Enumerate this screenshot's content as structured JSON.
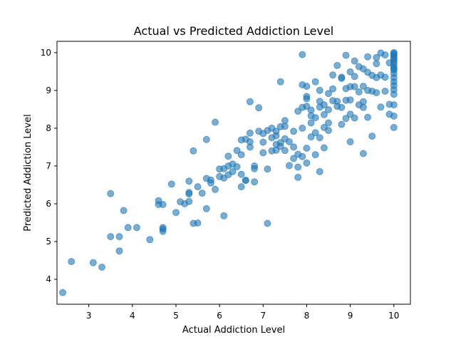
{
  "chart_data": {
    "type": "scatter",
    "title": "Actual vs Predicted Addiction Level",
    "xlabel": "Actual Addiction Level",
    "ylabel": "Predicted Addiction Level",
    "xlim": [
      2.27,
      10.38
    ],
    "ylim": [
      3.34,
      10.3
    ],
    "xticks": [
      "3",
      "4",
      "5",
      "6",
      "7",
      "8",
      "9",
      "10"
    ],
    "yticks": [
      "4",
      "5",
      "6",
      "7",
      "8",
      "9",
      "10"
    ],
    "grid": false,
    "legend": "none",
    "marker_color": "#1f77b4",
    "marker_alpha": 0.6,
    "x": [
      2.4,
      2.6,
      3.1,
      3.3,
      3.5,
      3.5,
      3.7,
      3.7,
      3.8,
      3.9,
      4.1,
      4.4,
      4.6,
      4.6,
      4.7,
      4.7,
      4.7,
      4.7,
      4.9,
      5.0,
      5.1,
      5.2,
      5.3,
      5.3,
      5.3,
      5.4,
      5.5,
      5.6,
      5.7,
      5.7,
      5.7,
      5.8,
      5.8,
      5.9,
      5.9,
      6.0,
      6.0,
      6.1,
      6.1,
      6.2,
      6.2,
      6.2,
      6.3,
      6.3,
      6.4,
      6.4,
      6.5,
      6.5,
      6.5,
      6.5,
      6.6,
      6.6,
      6.7,
      6.7,
      6.7,
      6.7,
      6.8,
      6.8,
      6.8,
      6.9,
      6.9,
      7.0,
      7.0,
      7.0,
      7.1,
      7.1,
      7.2,
      7.2,
      7.2,
      7.3,
      7.3,
      7.3,
      7.3,
      7.4,
      7.4,
      7.4,
      7.4,
      7.5,
      7.5,
      7.5,
      7.5,
      7.6,
      7.6,
      7.7,
      7.7,
      7.7,
      7.8,
      7.8,
      7.8,
      7.9,
      7.9,
      7.9,
      7.9,
      8.0,
      8.0,
      8.0,
      8.0,
      8.0,
      8.0,
      8.1,
      8.1,
      8.1,
      8.1,
      8.2,
      8.2,
      8.2,
      8.2,
      8.3,
      8.3,
      8.3,
      8.3,
      8.4,
      8.4,
      8.4,
      8.4,
      8.5,
      8.5,
      8.5,
      8.5,
      8.6,
      8.6,
      8.6,
      8.7,
      8.7,
      8.7,
      8.8,
      8.8,
      8.8,
      8.8,
      8.9,
      8.9,
      8.9,
      8.9,
      9.0,
      9.0,
      9.0,
      9.0,
      9.0,
      9.1,
      9.1,
      9.1,
      9.1,
      9.2,
      9.2,
      9.2,
      9.3,
      9.3,
      9.3,
      9.3,
      9.4,
      9.4,
      9.4,
      9.4,
      9.5,
      9.5,
      9.5,
      9.6,
      9.6,
      9.6,
      9.6,
      9.7,
      9.7,
      9.7,
      9.8,
      9.8,
      9.8,
      9.9,
      9.9,
      9.9,
      10.0,
      10.0,
      10.0,
      10.0,
      10.0,
      10.0,
      10.0,
      10.0,
      10.0,
      10.0,
      10.0,
      10.0,
      10.0,
      10.0,
      10.0,
      10.0,
      10.0,
      10.0,
      10.0,
      10.0,
      5.3,
      5.5,
      6.6,
      7.1,
      7.8,
      7.9,
      8.3,
      9.3,
      6.1,
      5.4
    ],
    "y": [
      3.65,
      4.47,
      4.44,
      4.32,
      5.13,
      6.27,
      5.13,
      4.75,
      5.82,
      5.37,
      5.37,
      5.05,
      6.08,
      5.98,
      5.98,
      5.37,
      5.33,
      5.27,
      6.52,
      5.77,
      6.05,
      6.0,
      6.26,
      6.6,
      6.06,
      5.48,
      6.45,
      6.28,
      6.67,
      5.87,
      7.7,
      6.63,
      6.55,
      6.38,
      8.16,
      6.72,
      6.92,
      6.93,
      6.68,
      7.0,
      7.26,
      6.77,
      7.05,
      6.85,
      7.41,
      6.98,
      6.78,
      7.69,
      7.3,
      6.45,
      7.71,
      6.62,
      7.5,
      7.64,
      7.87,
      8.7,
      6.93,
      7.0,
      6.58,
      7.92,
      8.54,
      7.35,
      7.63,
      7.86,
      6.92,
      7.94,
      7.4,
      7.75,
      8.0,
      7.42,
      7.57,
      7.8,
      7.92,
      7.52,
      7.62,
      8.04,
      9.23,
      7.41,
      7.72,
      8.2,
      8.05,
      7.01,
      7.64,
      7.2,
      7.5,
      7.92,
      6.97,
      7.31,
      8.45,
      8.55,
      8.0,
      9.95,
      9.15,
      7.08,
      7.47,
      8.58,
      8.78,
      8.84,
      9.11,
      7.77,
      8.14,
      8.33,
      8.48,
      7.3,
      7.88,
      8.28,
      9.23,
      7.75,
      8.56,
      8.71,
      9.0,
      7.48,
      8.02,
      8.36,
      8.62,
      7.94,
      8.14,
      8.49,
      8.92,
      8.73,
      9.04,
      9.41,
      8.58,
      8.71,
      9.66,
      8.1,
      8.55,
      9.32,
      9.35,
      8.26,
      8.74,
      9.05,
      9.93,
      7.64,
      8.37,
      8.75,
      9.1,
      9.49,
      8.27,
      9.1,
      9.37,
      9.78,
      8.62,
      8.96,
      9.63,
      7.33,
      8.55,
      9.11,
      9.57,
      8.29,
      9.0,
      9.48,
      9.89,
      7.79,
      8.98,
      9.4,
      8.94,
      9.34,
      9.71,
      9.87,
      8.56,
      9.41,
      9.99,
      8.98,
      9.35,
      9.94,
      8.37,
      8.63,
      9.73,
      8.02,
      8.32,
      8.62,
      8.9,
      9.02,
      9.13,
      9.23,
      9.34,
      9.45,
      9.54,
      9.62,
      9.7,
      9.76,
      9.82,
      9.87,
      9.91,
      9.95,
      9.98,
      10.0,
      9.58,
      6.3,
      5.49,
      6.62,
      5.48,
      6.7,
      7.25,
      6.85,
      8.7,
      5.68,
      7.4
    ]
  }
}
